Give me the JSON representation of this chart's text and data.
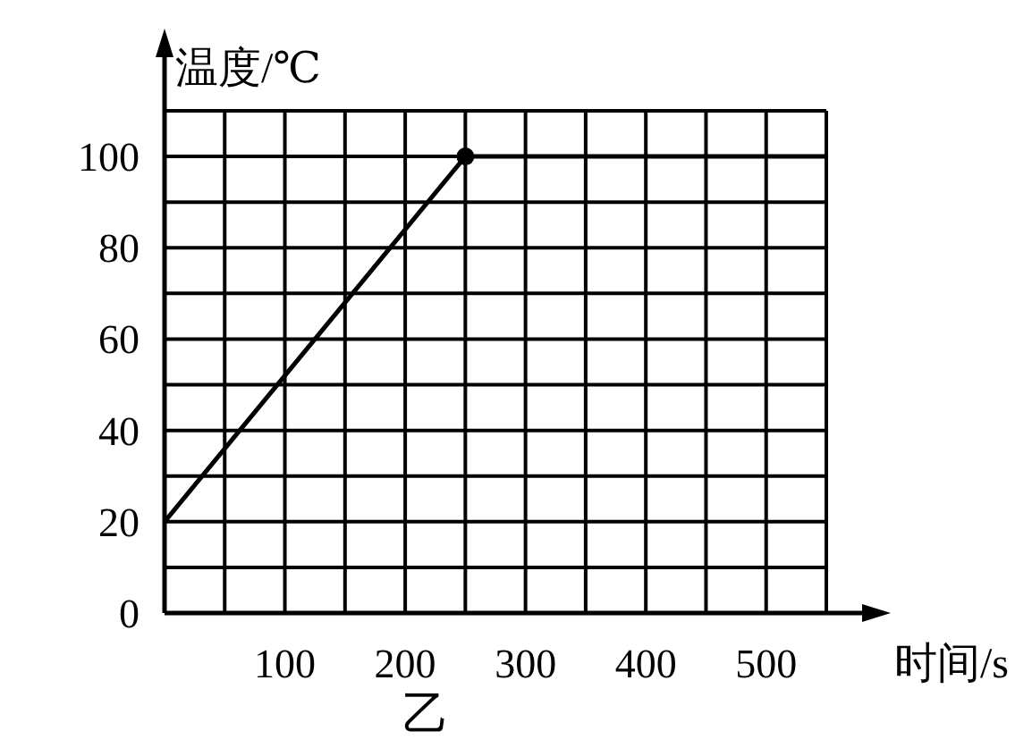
{
  "chart_data": {
    "type": "line",
    "xlabel": "时间/s",
    "ylabel": "温度/℃",
    "annotations": [
      "乙"
    ],
    "series": [
      {
        "color": "#000000",
        "x": [
          0,
          250,
          550
        ],
        "values": [
          20,
          100,
          100
        ]
      },
      {
        "type": "scatter",
        "color": "#000000",
        "x": [
          250
        ],
        "values": [
          100
        ]
      }
    ],
    "xlim": [
      0,
      550
    ],
    "ylim": [
      0,
      110
    ],
    "xticks": [
      {
        "value": 0,
        "label": null
      },
      {
        "value": 50,
        "label": null
      },
      100,
      {
        "value": 150,
        "label": null
      },
      200,
      {
        "value": 250,
        "label": null
      },
      300,
      {
        "value": 350,
        "label": null
      },
      400,
      {
        "value": 450,
        "label": null
      },
      500,
      {
        "value": 550,
        "label": null
      }
    ],
    "yticks": [
      0,
      {
        "value": 10,
        "label": null
      },
      20,
      {
        "value": 30,
        "label": null
      },
      40,
      {
        "value": 50,
        "label": null
      },
      60,
      {
        "value": 70,
        "label": null
      },
      80,
      {
        "value": 90,
        "label": null
      },
      100,
      {
        "value": 110,
        "label": null
      }
    ],
    "grid": true
  }
}
